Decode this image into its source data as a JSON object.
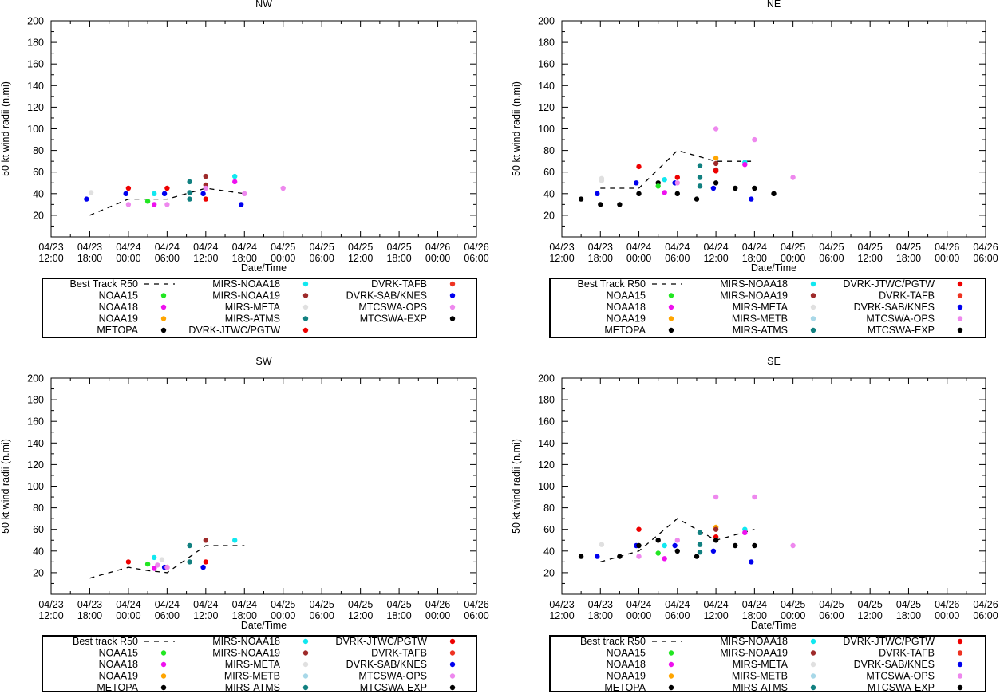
{
  "colors": {
    "best_track": "#000000",
    "NOAA15": "#22e622",
    "NOAA18": "#ee11ee",
    "NOAA19": "#ffa500",
    "METOPA": "#000000",
    "MIRS-NOAA18": "#11e8f0",
    "MIRS-NOAA19": "#9e2a2a",
    "MIRS-META": "#e0e0e0",
    "MIRS-METB": "#a8d8e8",
    "MIRS-ATMS": "#118080",
    "DVRK-JTWC/PGTW": "#ee0000",
    "DVRK-TAFB": "#ee3322",
    "DVRK-SAB/KNES": "#0000ee",
    "MTCSWA-OPS": "#ee88ee",
    "MTCSWA-EXP": "#000000"
  },
  "chart_data": [
    {
      "type": "scatter",
      "title": "NW",
      "xlabel": "Date/Time",
      "ylabel": "50 kt wind radii (n.mi)",
      "xlim": [
        0,
        66
      ],
      "ylim": [
        0,
        200
      ],
      "x_unit": "hours since 04/23 12:00",
      "x_ticks": [
        {
          "x": 0,
          "d": "04/23",
          "t": "12:00"
        },
        {
          "x": 6,
          "d": "04/23",
          "t": "18:00"
        },
        {
          "x": 12,
          "d": "04/24",
          "t": "00:00"
        },
        {
          "x": 18,
          "d": "04/24",
          "t": "06:00"
        },
        {
          "x": 24,
          "d": "04/24",
          "t": "12:00"
        },
        {
          "x": 30,
          "d": "04/24",
          "t": "18:00"
        },
        {
          "x": 36,
          "d": "04/25",
          "t": "00:00"
        },
        {
          "x": 42,
          "d": "04/25",
          "t": "06:00"
        },
        {
          "x": 48,
          "d": "04/25",
          "t": "12:00"
        },
        {
          "x": 54,
          "d": "04/25",
          "t": "18:00"
        },
        {
          "x": 60,
          "d": "04/26",
          "t": "00:00"
        },
        {
          "x": 66,
          "d": "04/26",
          "t": "06:00"
        }
      ],
      "y_ticks": [
        20,
        40,
        60,
        80,
        100,
        120,
        140,
        160,
        180,
        200
      ],
      "best_track": {
        "x": [
          6,
          12,
          18,
          24,
          30
        ],
        "y": [
          20,
          35,
          35,
          45,
          40
        ]
      },
      "points": [
        {
          "s": "DVRK-SAB/KNES",
          "x": 5.5,
          "y": 35
        },
        {
          "s": "MIRS-META",
          "x": 6.2,
          "y": 41
        },
        {
          "s": "DVRK-JTWC/PGTW",
          "x": 12,
          "y": 45
        },
        {
          "s": "DVRK-SAB/KNES",
          "x": 11.6,
          "y": 40
        },
        {
          "s": "MTCSWA-OPS",
          "x": 12,
          "y": 30
        },
        {
          "s": "NOAA15",
          "x": 15,
          "y": 33
        },
        {
          "s": "NOAA18",
          "x": 16,
          "y": 30
        },
        {
          "s": "MIRS-NOAA18",
          "x": 16,
          "y": 40
        },
        {
          "s": "DVRK-SAB/KNES",
          "x": 17.6,
          "y": 40
        },
        {
          "s": "DVRK-JTWC/PGTW",
          "x": 18,
          "y": 45
        },
        {
          "s": "MTCSWA-OPS",
          "x": 18,
          "y": 30
        },
        {
          "s": "MIRS-ATMS",
          "x": 21.5,
          "y": 51
        },
        {
          "s": "MIRS-ATMS",
          "x": 21.5,
          "y": 41
        },
        {
          "s": "MIRS-ATMS",
          "x": 21.5,
          "y": 35
        },
        {
          "s": "DVRK-SAB/KNES",
          "x": 23.6,
          "y": 40
        },
        {
          "s": "MIRS-NOAA19",
          "x": 24,
          "y": 56
        },
        {
          "s": "MIRS-NOAA19",
          "x": 24,
          "y": 48
        },
        {
          "s": "DVRK-JTWC/PGTW",
          "x": 24,
          "y": 35
        },
        {
          "s": "MTCSWA-OPS",
          "x": 24,
          "y": 45
        },
        {
          "s": "MIRS-NOAA18",
          "x": 28.5,
          "y": 56
        },
        {
          "s": "NOAA18",
          "x": 28.5,
          "y": 51
        },
        {
          "s": "DVRK-SAB/KNES",
          "x": 29.5,
          "y": 30
        },
        {
          "s": "MTCSWA-OPS",
          "x": 30,
          "y": 40
        },
        {
          "s": "MTCSWA-OPS",
          "x": 36,
          "y": 45
        }
      ],
      "legend": {
        "placement": "below",
        "columns": [
          [
            "Best Track R50",
            "NOAA15",
            "NOAA18",
            "NOAA19",
            "METOPA"
          ],
          [
            "MIRS-NOAA18",
            "MIRS-NOAA19",
            "MIRS-META",
            "MIRS-ATMS",
            "DVRK-JTWC/PGTW"
          ],
          [
            "DVRK-TAFB",
            "DVRK-SAB/KNES",
            "MTCSWA-OPS",
            "MTCSWA-EXP"
          ]
        ]
      }
    },
    {
      "type": "scatter",
      "title": "NE",
      "xlabel": "Date/Time",
      "ylabel": "50 kt wind radii (n.mi)",
      "xlim": [
        0,
        66
      ],
      "ylim": [
        0,
        200
      ],
      "x_unit": "hours since 04/23 12:00",
      "x_ticks": [
        {
          "x": 0,
          "d": "04/23",
          "t": "12:00"
        },
        {
          "x": 6,
          "d": "04/23",
          "t": "18:00"
        },
        {
          "x": 12,
          "d": "04/24",
          "t": "00:00"
        },
        {
          "x": 18,
          "d": "04/24",
          "t": "06:00"
        },
        {
          "x": 24,
          "d": "04/24",
          "t": "12:00"
        },
        {
          "x": 30,
          "d": "04/24",
          "t": "18:00"
        },
        {
          "x": 36,
          "d": "04/25",
          "t": "00:00"
        },
        {
          "x": 42,
          "d": "04/25",
          "t": "06:00"
        },
        {
          "x": 48,
          "d": "04/25",
          "t": "12:00"
        },
        {
          "x": 54,
          "d": "04/25",
          "t": "18:00"
        },
        {
          "x": 60,
          "d": "04/26",
          "t": "00:00"
        },
        {
          "x": 66,
          "d": "04/26",
          "t": "06:00"
        }
      ],
      "y_ticks": [
        20,
        40,
        60,
        80,
        100,
        120,
        140,
        160,
        180,
        200
      ],
      "best_track": {
        "x": [
          6,
          12,
          18,
          24,
          30
        ],
        "y": [
          45,
          45,
          80,
          70,
          70
        ]
      },
      "points": [
        {
          "s": "METOPA",
          "x": 3,
          "y": 35
        },
        {
          "s": "DVRK-SAB/KNES",
          "x": 5.5,
          "y": 40
        },
        {
          "s": "MIRS-META",
          "x": 6.2,
          "y": 54
        },
        {
          "s": "MIRS-META",
          "x": 6.2,
          "y": 52
        },
        {
          "s": "METOPA",
          "x": 6,
          "y": 30
        },
        {
          "s": "METOPA",
          "x": 9,
          "y": 30
        },
        {
          "s": "DVRK-SAB/KNES",
          "x": 11.6,
          "y": 50
        },
        {
          "s": "DVRK-JTWC/PGTW",
          "x": 12,
          "y": 65
        },
        {
          "s": "METOPA",
          "x": 12,
          "y": 40
        },
        {
          "s": "METOPA",
          "x": 15,
          "y": 50
        },
        {
          "s": "NOAA15",
          "x": 15,
          "y": 47
        },
        {
          "s": "NOAA18",
          "x": 16,
          "y": 41
        },
        {
          "s": "MIRS-NOAA18",
          "x": 16,
          "y": 53
        },
        {
          "s": "DVRK-SAB/KNES",
          "x": 17.6,
          "y": 50
        },
        {
          "s": "DVRK-JTWC/PGTW",
          "x": 18,
          "y": 55
        },
        {
          "s": "MTCSWA-OPS",
          "x": 18,
          "y": 50
        },
        {
          "s": "METOPA",
          "x": 18,
          "y": 40
        },
        {
          "s": "METOPA",
          "x": 21,
          "y": 35
        },
        {
          "s": "MIRS-ATMS",
          "x": 21.5,
          "y": 66
        },
        {
          "s": "MIRS-ATMS",
          "x": 21.5,
          "y": 55
        },
        {
          "s": "MIRS-ATMS",
          "x": 21.5,
          "y": 47
        },
        {
          "s": "DVRK-SAB/KNES",
          "x": 23.6,
          "y": 45
        },
        {
          "s": "MTCSWA-OPS",
          "x": 24,
          "y": 100
        },
        {
          "s": "NOAA19",
          "x": 24,
          "y": 73
        },
        {
          "s": "MIRS-NOAA19",
          "x": 24,
          "y": 68
        },
        {
          "s": "MIRS-NOAA19",
          "x": 24,
          "y": 62
        },
        {
          "s": "DVRK-JTWC/PGTW",
          "x": 24,
          "y": 61
        },
        {
          "s": "METOPA",
          "x": 24,
          "y": 50
        },
        {
          "s": "METOPA",
          "x": 27,
          "y": 45
        },
        {
          "s": "MIRS-NOAA18",
          "x": 28.5,
          "y": 69
        },
        {
          "s": "NOAA18",
          "x": 28.5,
          "y": 67
        },
        {
          "s": "DVRK-SAB/KNES",
          "x": 29.5,
          "y": 35
        },
        {
          "s": "MTCSWA-OPS",
          "x": 30,
          "y": 90
        },
        {
          "s": "METOPA",
          "x": 30,
          "y": 45
        },
        {
          "s": "METOPA",
          "x": 33,
          "y": 40
        },
        {
          "s": "MTCSWA-OPS",
          "x": 36,
          "y": 55
        }
      ],
      "legend": {
        "placement": "below",
        "columns": [
          [
            "Best Track R50",
            "NOAA15",
            "NOAA18",
            "NOAA19",
            "METOPA"
          ],
          [
            "MIRS-NOAA18",
            "MIRS-NOAA19",
            "MIRS-META",
            "MIRS-METB",
            "MIRS-ATMS"
          ],
          [
            "DVRK-JTWC/PGTW",
            "DVRK-TAFB",
            "DVRK-SAB/KNES",
            "MTCSWA-OPS",
            "MTCSWA-EXP"
          ]
        ]
      }
    },
    {
      "type": "scatter",
      "title": "SW",
      "xlabel": "Date/Time",
      "ylabel": "50 kt wind radii (n.mi)",
      "xlim": [
        0,
        66
      ],
      "ylim": [
        0,
        200
      ],
      "x_unit": "hours since 04/23 12:00",
      "x_ticks": [
        {
          "x": 0,
          "d": "04/23",
          "t": "12:00"
        },
        {
          "x": 6,
          "d": "04/23",
          "t": "18:00"
        },
        {
          "x": 12,
          "d": "04/24",
          "t": "00:00"
        },
        {
          "x": 18,
          "d": "04/24",
          "t": "06:00"
        },
        {
          "x": 24,
          "d": "04/24",
          "t": "12:00"
        },
        {
          "x": 30,
          "d": "04/24",
          "t": "18:00"
        },
        {
          "x": 36,
          "d": "04/25",
          "t": "00:00"
        },
        {
          "x": 42,
          "d": "04/25",
          "t": "06:00"
        },
        {
          "x": 48,
          "d": "04/25",
          "t": "12:00"
        },
        {
          "x": 54,
          "d": "04/25",
          "t": "18:00"
        },
        {
          "x": 60,
          "d": "04/26",
          "t": "00:00"
        },
        {
          "x": 66,
          "d": "04/26",
          "t": "06:00"
        }
      ],
      "y_ticks": [
        20,
        40,
        60,
        80,
        100,
        120,
        140,
        160,
        180,
        200
      ],
      "best_track": {
        "x": [
          6,
          12,
          15,
          18,
          24,
          30
        ],
        "y": [
          15,
          25,
          22,
          20,
          45,
          45
        ]
      },
      "points": [
        {
          "s": "DVRK-JTWC/PGTW",
          "x": 12,
          "y": 30
        },
        {
          "s": "NOAA15",
          "x": 15,
          "y": 28
        },
        {
          "s": "MIRS-NOAA18",
          "x": 16,
          "y": 34
        },
        {
          "s": "NOAA18",
          "x": 16,
          "y": 24
        },
        {
          "s": "MTCSWA-OPS",
          "x": 16.5,
          "y": 27
        },
        {
          "s": "MIRS-META",
          "x": 17.2,
          "y": 32
        },
        {
          "s": "DVRK-SAB/KNES",
          "x": 17.6,
          "y": 25
        },
        {
          "s": "DVRK-JTWC/PGTW",
          "x": 18,
          "y": 25
        },
        {
          "s": "MTCSWA-OPS",
          "x": 18,
          "y": 25
        },
        {
          "s": "MIRS-ATMS",
          "x": 21.5,
          "y": 45
        },
        {
          "s": "MIRS-ATMS",
          "x": 21.5,
          "y": 30
        },
        {
          "s": "DVRK-SAB/KNES",
          "x": 23.6,
          "y": 25
        },
        {
          "s": "MIRS-NOAA19",
          "x": 24,
          "y": 50
        },
        {
          "s": "DVRK-JTWC/PGTW",
          "x": 24,
          "y": 30
        },
        {
          "s": "MIRS-NOAA18",
          "x": 28.5,
          "y": 50
        }
      ],
      "legend": {
        "placement": "below",
        "columns": [
          [
            "Best track R50",
            "NOAA15",
            "NOAA18",
            "NOAA19",
            "METOPA"
          ],
          [
            "MIRS-NOAA18",
            "MIRS-NOAA19",
            "MIRS-META",
            "MIRS-METB",
            "MIRS-ATMS"
          ],
          [
            "DVRK-JTWC/PGTW",
            "DVRK-TAFB",
            "DVRK-SAB/KNES",
            "MTCSWA-OPS",
            "MTCSWA-EXP"
          ]
        ]
      }
    },
    {
      "type": "scatter",
      "title": "SE",
      "xlabel": "Date/Time",
      "ylabel": "50 kt wind radii (n.mi)",
      "xlim": [
        0,
        66
      ],
      "ylim": [
        0,
        200
      ],
      "x_unit": "hours since 04/23 12:00",
      "x_ticks": [
        {
          "x": 0,
          "d": "04/23",
          "t": "12:00"
        },
        {
          "x": 6,
          "d": "04/23",
          "t": "18:00"
        },
        {
          "x": 12,
          "d": "04/24",
          "t": "00:00"
        },
        {
          "x": 18,
          "d": "04/24",
          "t": "06:00"
        },
        {
          "x": 24,
          "d": "04/24",
          "t": "12:00"
        },
        {
          "x": 30,
          "d": "04/24",
          "t": "18:00"
        },
        {
          "x": 36,
          "d": "04/25",
          "t": "00:00"
        },
        {
          "x": 42,
          "d": "04/25",
          "t": "06:00"
        },
        {
          "x": 48,
          "d": "04/25",
          "t": "12:00"
        },
        {
          "x": 54,
          "d": "04/25",
          "t": "18:00"
        },
        {
          "x": 60,
          "d": "04/26",
          "t": "00:00"
        },
        {
          "x": 66,
          "d": "04/26",
          "t": "06:00"
        }
      ],
      "y_ticks": [
        20,
        40,
        60,
        80,
        100,
        120,
        140,
        160,
        180,
        200
      ],
      "best_track": {
        "x": [
          6,
          12,
          18,
          24,
          30
        ],
        "y": [
          30,
          40,
          70,
          50,
          60
        ]
      },
      "points": [
        {
          "s": "METOPA",
          "x": 3,
          "y": 35
        },
        {
          "s": "DVRK-SAB/KNES",
          "x": 5.5,
          "y": 35
        },
        {
          "s": "MIRS-META",
          "x": 6.2,
          "y": 46
        },
        {
          "s": "METOPA",
          "x": 9,
          "y": 35
        },
        {
          "s": "DVRK-JTWC/PGTW",
          "x": 12,
          "y": 60
        },
        {
          "s": "DVRK-SAB/KNES",
          "x": 11.6,
          "y": 45
        },
        {
          "s": "METOPA",
          "x": 12,
          "y": 45
        },
        {
          "s": "MTCSWA-OPS",
          "x": 12,
          "y": 35
        },
        {
          "s": "METOPA",
          "x": 15,
          "y": 50
        },
        {
          "s": "NOAA15",
          "x": 15,
          "y": 38
        },
        {
          "s": "MIRS-NOAA18",
          "x": 16,
          "y": 45
        },
        {
          "s": "NOAA18",
          "x": 16,
          "y": 33
        },
        {
          "s": "DVRK-SAB/KNES",
          "x": 17.6,
          "y": 45
        },
        {
          "s": "MTCSWA-OPS",
          "x": 18,
          "y": 50
        },
        {
          "s": "METOPA",
          "x": 18,
          "y": 40
        },
        {
          "s": "METOPA",
          "x": 21,
          "y": 35
        },
        {
          "s": "MIRS-ATMS",
          "x": 21.5,
          "y": 57
        },
        {
          "s": "MIRS-ATMS",
          "x": 21.5,
          "y": 46
        },
        {
          "s": "MIRS-ATMS",
          "x": 21.5,
          "y": 39
        },
        {
          "s": "DVRK-SAB/KNES",
          "x": 23.6,
          "y": 40
        },
        {
          "s": "MTCSWA-OPS",
          "x": 24,
          "y": 90
        },
        {
          "s": "NOAA19",
          "x": 24,
          "y": 62
        },
        {
          "s": "MIRS-NOAA19",
          "x": 24,
          "y": 60
        },
        {
          "s": "DVRK-JTWC/PGTW",
          "x": 24,
          "y": 53
        },
        {
          "s": "METOPA",
          "x": 24,
          "y": 50
        },
        {
          "s": "METOPA",
          "x": 27,
          "y": 45
        },
        {
          "s": "MIRS-NOAA18",
          "x": 28.5,
          "y": 60
        },
        {
          "s": "NOAA18",
          "x": 28.5,
          "y": 57
        },
        {
          "s": "DVRK-SAB/KNES",
          "x": 29.5,
          "y": 30
        },
        {
          "s": "MTCSWA-OPS",
          "x": 30,
          "y": 90
        },
        {
          "s": "METOPA",
          "x": 30,
          "y": 45
        },
        {
          "s": "MTCSWA-OPS",
          "x": 36,
          "y": 45
        }
      ],
      "legend": {
        "placement": "below",
        "columns": [
          [
            "Best track R50",
            "NOAA15",
            "NOAA18",
            "NOAA19",
            "METOPA"
          ],
          [
            "MIRS-NOAA18",
            "MIRS-NOAA19",
            "MIRS-META",
            "MIRS-METB",
            "MIRS-ATMS"
          ],
          [
            "DVRK-JTWC/PGTW",
            "DVRK-TAFB",
            "DVRK-SAB/KNES",
            "MTCSWA-OPS",
            "MTCSWA-EXP"
          ]
        ]
      }
    }
  ]
}
